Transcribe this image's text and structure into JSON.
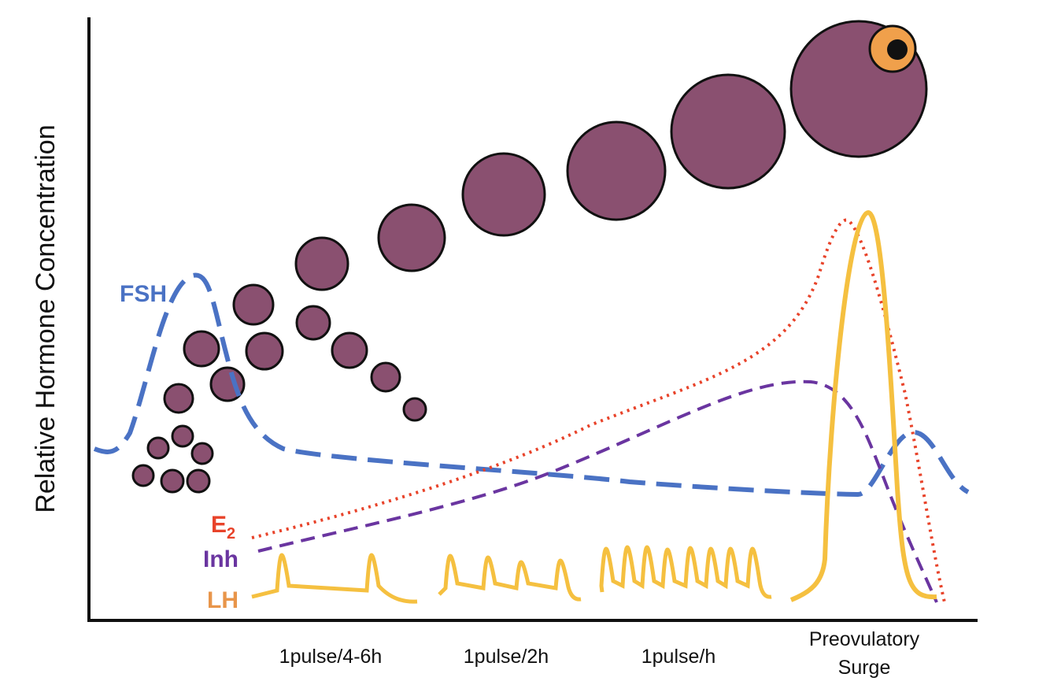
{
  "axis": {
    "y_label": "Relative Hormone Concentration"
  },
  "hormones": {
    "fsh": "FSH",
    "e2": {
      "base": "E",
      "sub": "2"
    },
    "inh": "Inh",
    "lh": "LH"
  },
  "phases": [
    "1pulse/4-6h",
    "1pulse/2h",
    "1pulse/h"
  ],
  "surge": [
    "Preovulatory",
    "Surge"
  ]
}
